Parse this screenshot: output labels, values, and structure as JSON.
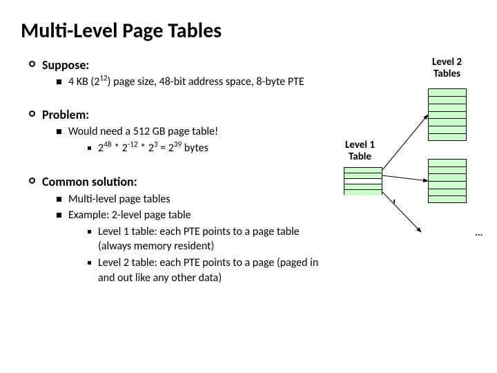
{
  "title": "Multi-Level Page Tables",
  "sections": {
    "suppose": {
      "label": "Suppose:",
      "item1_html": "4 KB (2<sup>12</sup>) page size, 48-bit address space, 8-byte PTE"
    },
    "problem": {
      "label": "Problem:",
      "item1": "Would need a 512 GB page table!",
      "sub1_html": "2<sup>48</sup> * 2<sup>-12</sup> * 2<sup>3</sup> = 2<sup>39</sup> bytes"
    },
    "solution": {
      "label": "Common solution:",
      "item1": "Multi-level page tables",
      "item2": "Example: 2-level page table",
      "sub1": "Level 1 table: each PTE points to a page table (always memory resident)",
      "sub2": "Level 2 table: each PTE points to a page (paged in and out like any other data)"
    }
  },
  "diagram": {
    "lvl2_label_line1": "Level 2",
    "lvl2_label_line2": "Tables",
    "lvl1_label_line1": "Level 1",
    "lvl1_label_line2": "Table",
    "vdots": "...",
    "hdots": "...",
    "colors": {
      "table_fill": "#ccffcc",
      "arrow": "#000000",
      "border": "#000000"
    },
    "lvl1_rows": 5,
    "lvl2a_rows": 7,
    "lvl2b_rows": 6
  }
}
